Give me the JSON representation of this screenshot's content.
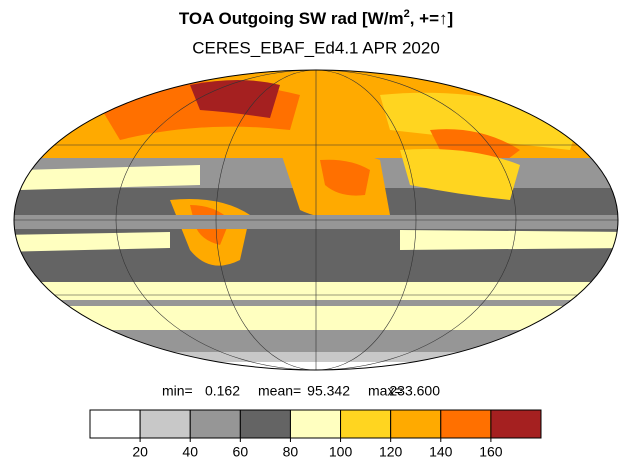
{
  "title": {
    "text": "TOA Outgoing SW rad [W/m",
    "sup": "2",
    "rest": ", +=↑]"
  },
  "subtitle": "CERES_EBAF_Ed4.1 APR 2020",
  "stats": [
    {
      "label": "min=",
      "value": "0.162"
    },
    {
      "label": "mean=",
      "value": "95.342"
    },
    {
      "label": "max=",
      "value": "233.600"
    }
  ],
  "colorbar": {
    "colors": [
      "#ffffff",
      "#c8c8c8",
      "#969696",
      "#646464",
      "#ffffc0",
      "#ffd520",
      "#ffaa00",
      "#ff7000",
      "#a52020"
    ],
    "ticks": [
      20,
      40,
      60,
      80,
      100,
      120,
      140,
      160
    ]
  }
}
